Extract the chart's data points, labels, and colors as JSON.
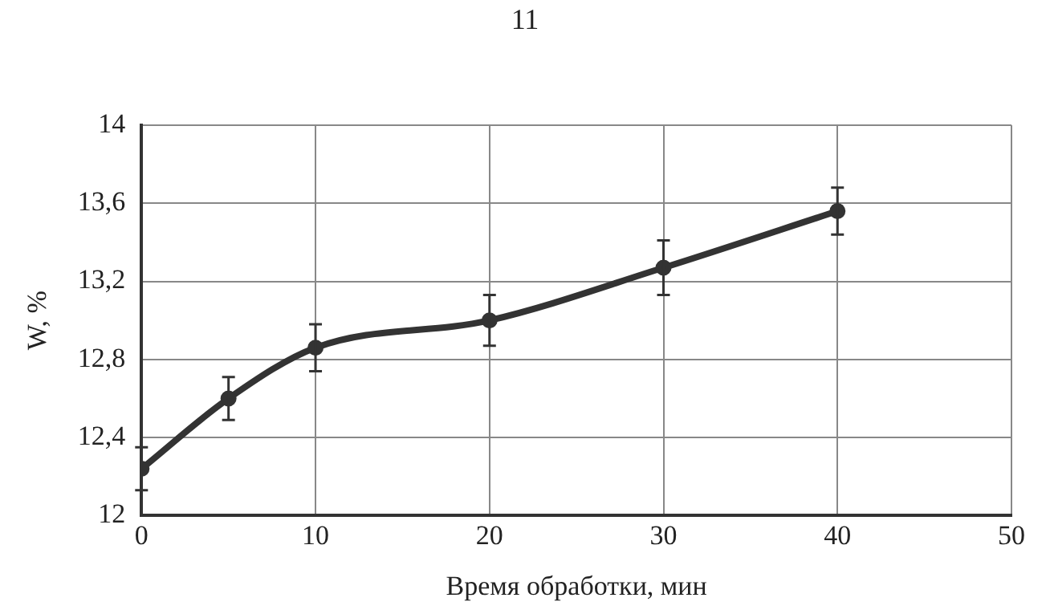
{
  "chart_data": {
    "type": "line",
    "xlabel": "Время обработки, мин",
    "ylabel": "W, %",
    "annotations": [
      "11"
    ],
    "x": [
      0,
      5,
      10,
      20,
      30,
      40
    ],
    "series": [
      {
        "color": "#333333",
        "values": [
          12.24,
          12.6,
          12.86,
          13.0,
          13.27,
          13.56
        ],
        "errors": [
          0.11,
          0.11,
          0.12,
          0.13,
          0.14,
          0.12
        ]
      }
    ],
    "xlim": [
      0,
      50
    ],
    "xticks": [
      0,
      10,
      20,
      30,
      40,
      50
    ],
    "ylim": [
      12,
      14
    ],
    "yticks": [
      {
        "value": 12,
        "label": "12"
      },
      {
        "value": 12.4,
        "label": "12,4"
      },
      {
        "value": 12.8,
        "label": "12,8"
      },
      {
        "value": 13.2,
        "label": "13,2"
      },
      {
        "value": 13.6,
        "label": "13,6"
      },
      {
        "value": 14,
        "label": "14"
      }
    ],
    "grid": true,
    "legend": false,
    "marker": "circle",
    "line_style": "solid"
  }
}
